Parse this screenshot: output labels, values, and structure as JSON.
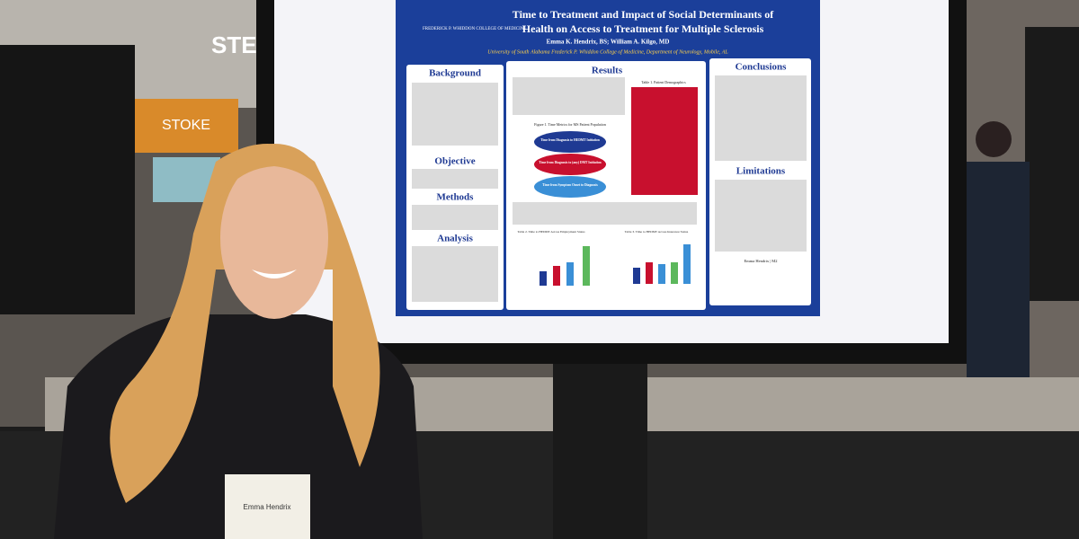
{
  "sign": {
    "text": "STE",
    "booth": "STOKE"
  },
  "poster": {
    "logo": "FREDERICK P. WHIDDON COLLEGE OF MEDICINE",
    "title_lines": [
      "Time to Treatment and Impact of Social Determinants of",
      "Health on Access to Treatment for Multiple Sclerosis"
    ],
    "authors": "Emma K. Hendrix, BS; William A. Kilgo, MD",
    "affiliation": "University of South Alabama Frederick P. Whiddon College of Medicine, Department of Neurology, Mobile, AL",
    "sections": [
      "Background",
      "Objective",
      "Methods",
      "Analysis",
      "Results",
      "Conclusions",
      "Limitations"
    ],
    "figure_title": "Figure 1. Time Metrics for MS Patient Population",
    "metrics": [
      "Time from Diagnosis to HEDMT Initiation",
      "Time from Diagnosis to (any) DMT Initiation",
      "Time from Symptom Onset to Diagnosis"
    ],
    "table_title": "Table 1. Patient Demographics",
    "chart_titles": [
      "Table 2. Time to HEDMT Across Employment Status",
      "Table 3. Time to HEDMT Across Insurance Status"
    ],
    "contact": "Emma Hendrix | M2"
  },
  "badge": {
    "name": "Emma Hendrix"
  }
}
